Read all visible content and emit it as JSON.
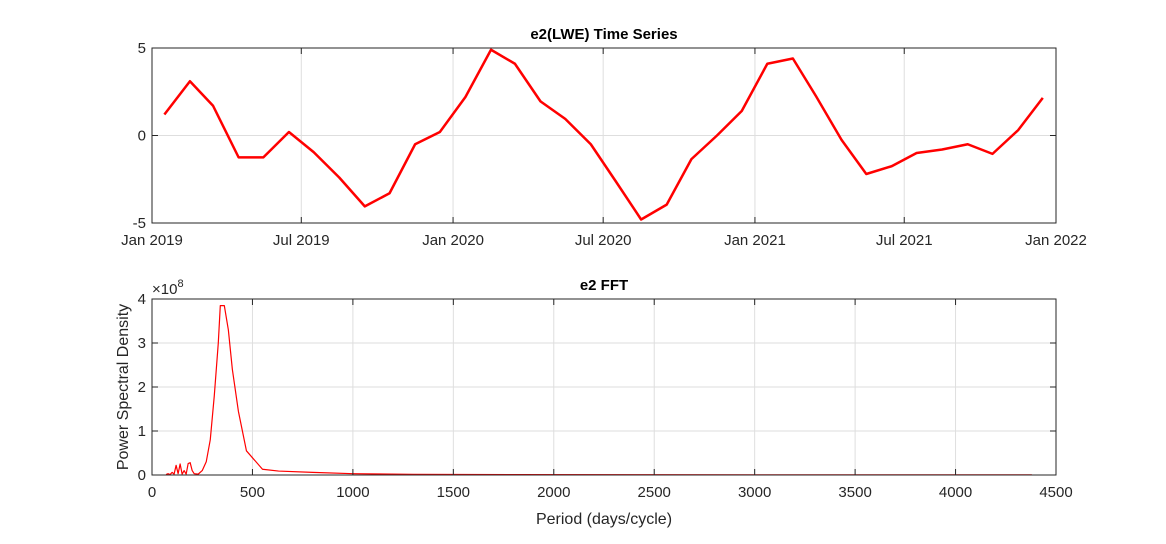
{
  "chart_data": [
    {
      "type": "line",
      "title": "e2(LWE) Time Series",
      "xlabel": "",
      "ylabel": "",
      "x_ticks": [
        "Jan 2019",
        "Jul 2019",
        "Jan 2020",
        "Jul 2020",
        "Jan 2021",
        "Jul 2021",
        "Jan 2022"
      ],
      "x_tick_dates": [
        "2019-01-01",
        "2019-07-01",
        "2020-01-01",
        "2020-07-01",
        "2021-01-01",
        "2021-07-01",
        "2022-01-01"
      ],
      "xlim": [
        "2019-01-01",
        "2022-01-01"
      ],
      "y_ticks": [
        "-5",
        "0",
        "5"
      ],
      "y_tick_values": [
        -5,
        0,
        5
      ],
      "ylim": [
        -5,
        5
      ],
      "grid": true,
      "line_color": "#ff0000",
      "x": [
        "2019-01-16",
        "2019-02-16",
        "2019-03-16",
        "2019-04-16",
        "2019-05-16",
        "2019-06-16",
        "2019-07-16",
        "2019-08-16",
        "2019-09-16",
        "2019-10-16",
        "2019-11-16",
        "2019-12-16",
        "2020-01-16",
        "2020-02-16",
        "2020-03-16",
        "2020-04-16",
        "2020-05-16",
        "2020-06-16",
        "2020-07-16",
        "2020-08-16",
        "2020-09-16",
        "2020-10-16",
        "2020-11-16",
        "2020-12-16",
        "2021-01-16",
        "2021-02-16",
        "2021-03-16",
        "2021-04-16",
        "2021-05-16",
        "2021-06-16",
        "2021-07-16",
        "2021-08-16",
        "2021-09-16",
        "2021-10-16",
        "2021-11-16",
        "2021-12-16"
      ],
      "values": [
        1.2,
        3.1,
        1.7,
        -1.25,
        -1.25,
        0.2,
        -0.95,
        -2.4,
        -4.05,
        -3.3,
        -0.5,
        0.2,
        2.2,
        4.9,
        4.1,
        1.95,
        0.95,
        -0.5,
        -2.6,
        -4.8,
        -3.95,
        -1.35,
        0.0,
        1.4,
        4.1,
        4.4,
        2.25,
        -0.25,
        -2.2,
        -1.75,
        -1.0,
        -0.8,
        -0.5,
        -1.05,
        0.3,
        2.15
      ]
    },
    {
      "type": "line",
      "title": "e2 FFT",
      "xlabel": "Period (days/cycle)",
      "ylabel": "Power Spectral Density",
      "y_exponent": "×10",
      "y_exponent_power": "8",
      "x_ticks": [
        "0",
        "500",
        "1000",
        "1500",
        "2000",
        "2500",
        "3000",
        "3500",
        "4000",
        "4500"
      ],
      "x_tick_values": [
        0,
        500,
        1000,
        1500,
        2000,
        2500,
        3000,
        3500,
        4000,
        4500
      ],
      "xlim": [
        0,
        4500
      ],
      "y_ticks": [
        "0",
        "1",
        "2",
        "3",
        "4"
      ],
      "y_tick_values": [
        0,
        1,
        2,
        3,
        4
      ],
      "ylim": [
        0,
        4
      ],
      "grid": true,
      "line_color": "#ff0000",
      "x": [
        70,
        80,
        90,
        100,
        110,
        120,
        130,
        140,
        150,
        160,
        170,
        180,
        190,
        200,
        210,
        230,
        250,
        270,
        290,
        310,
        330,
        340,
        360,
        380,
        400,
        430,
        470,
        550,
        630,
        800,
        1000,
        1300,
        1800,
        2500,
        3200,
        3900,
        4380
      ],
      "values": [
        0.01,
        0.03,
        0.01,
        0.06,
        0.02,
        0.22,
        0.03,
        0.25,
        0.02,
        0.1,
        0.02,
        0.26,
        0.28,
        0.1,
        0.03,
        0.02,
        0.1,
        0.3,
        0.8,
        1.8,
        3.0,
        3.85,
        3.85,
        3.3,
        2.4,
        1.45,
        0.55,
        0.13,
        0.09,
        0.06,
        0.03,
        0.015,
        0.01,
        0.005,
        0.003,
        0.002,
        0.002
      ]
    }
  ]
}
